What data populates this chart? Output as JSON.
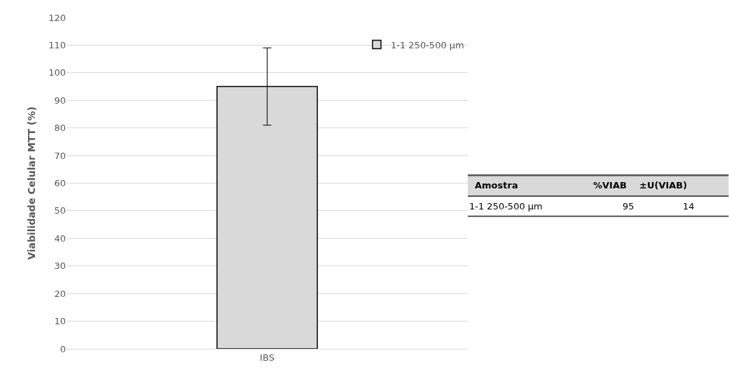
{
  "chart_data": {
    "type": "bar",
    "ylabel": "Viabilidade Celular MTT (%)",
    "categories": [
      "IBS"
    ],
    "series": [
      {
        "name": "1-1 250-500 µm",
        "color": "#d9d9d9",
        "values": [
          95
        ],
        "errors": [
          14
        ]
      }
    ],
    "ylim": [
      0,
      120
    ],
    "yticks": [
      0,
      10,
      20,
      30,
      40,
      50,
      60,
      70,
      80,
      90,
      100,
      110,
      120
    ],
    "grid": "y",
    "legend": "top right",
    "annotations": [
      "Amostra",
      "%VIAB",
      "±U(VIAB)",
      "95",
      "14"
    ]
  }
}
